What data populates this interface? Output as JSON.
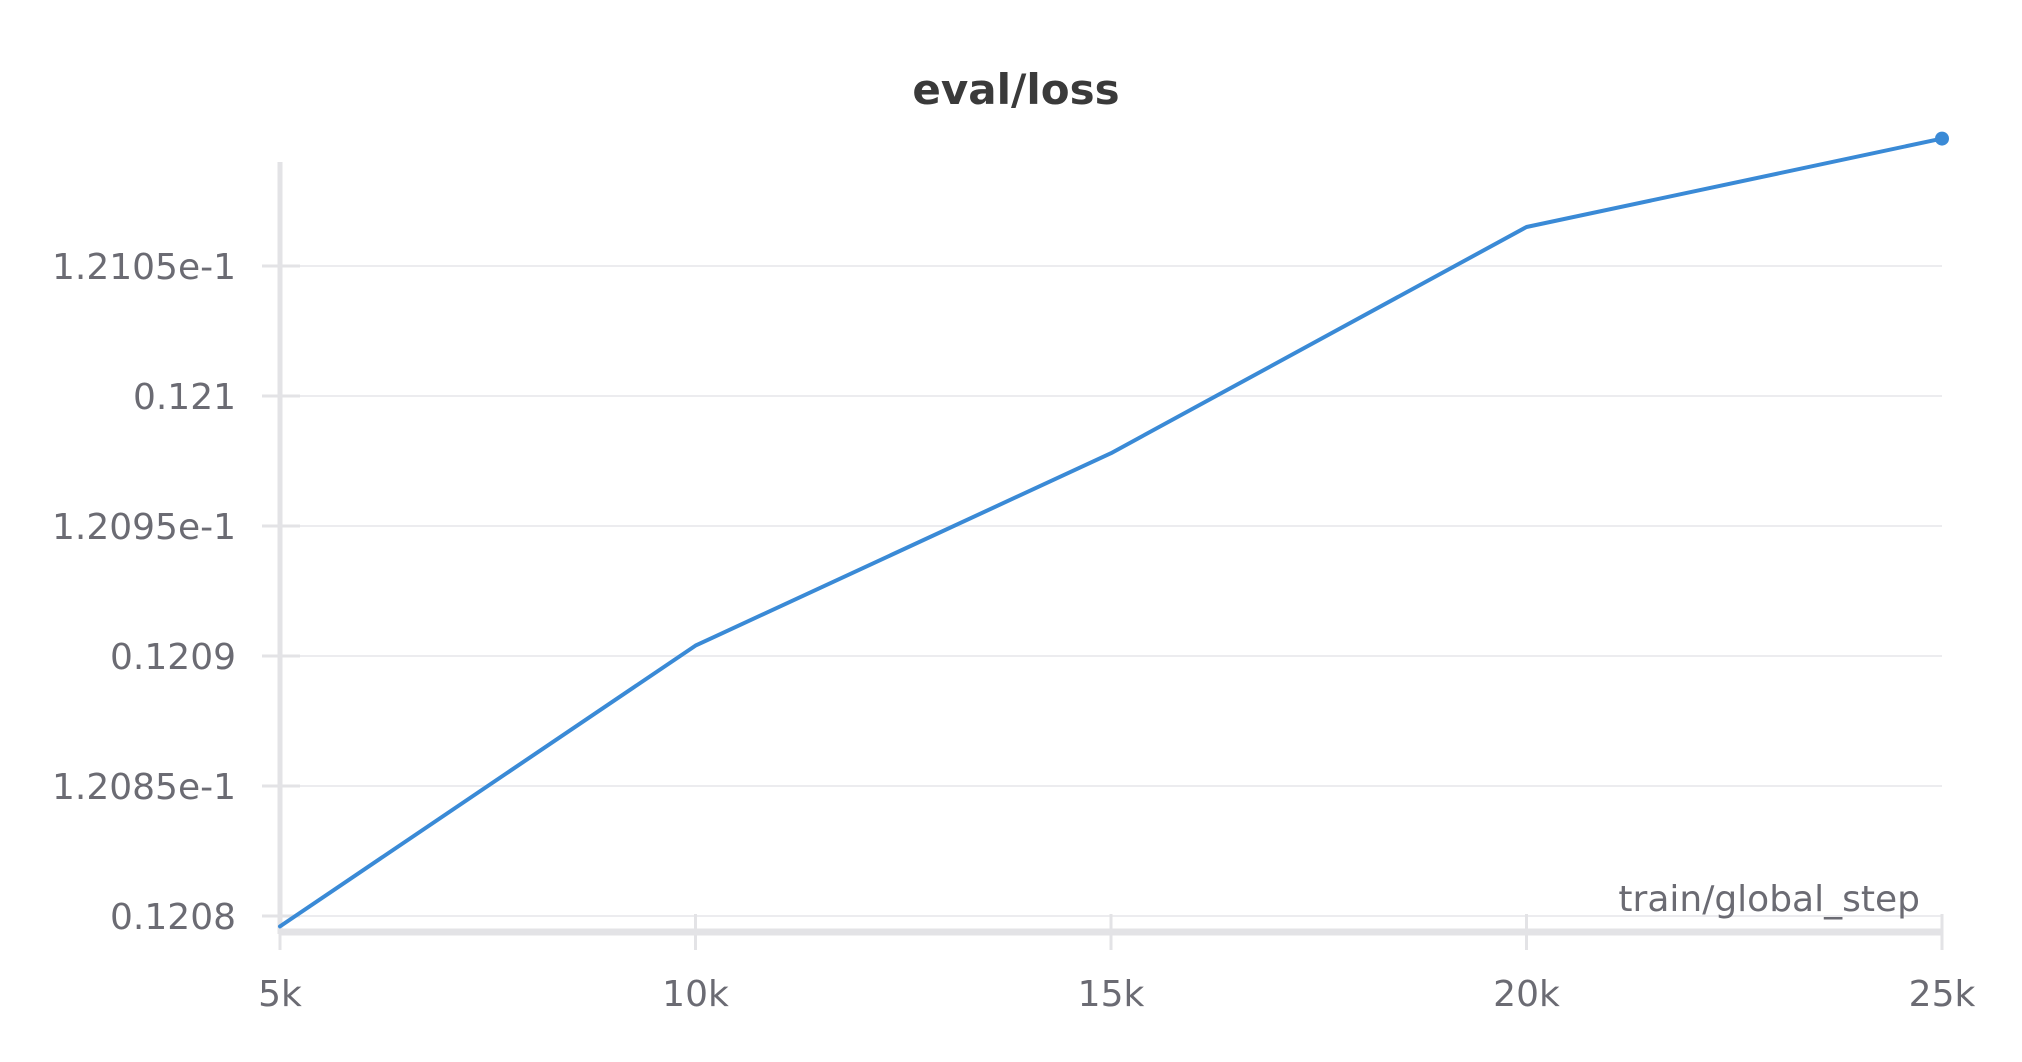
{
  "chart_data": {
    "type": "line",
    "title": "eval/loss",
    "xlabel": "train/global_step",
    "ylabel": "",
    "xlim": [
      5000,
      25000
    ],
    "ylim": [
      0.120795,
      0.12109
    ],
    "grid": true,
    "x_ticks": [
      {
        "value": 5000,
        "label": "5k"
      },
      {
        "value": 10000,
        "label": "10k"
      },
      {
        "value": 15000,
        "label": "15k"
      },
      {
        "value": 20000,
        "label": "20k"
      },
      {
        "value": 25000,
        "label": "25k"
      }
    ],
    "y_ticks": [
      {
        "value": 0.1208,
        "label": "0.1208"
      },
      {
        "value": 0.12085,
        "label": "1.2085e-1"
      },
      {
        "value": 0.1209,
        "label": "0.1209"
      },
      {
        "value": 0.12095,
        "label": "1.2095e-1"
      },
      {
        "value": 0.121,
        "label": "0.121"
      },
      {
        "value": 0.12105,
        "label": "1.2105e-1"
      }
    ],
    "series": [
      {
        "color": "#3a8ad6",
        "x": [
          5000,
          10000,
          15000,
          20000,
          25000
        ],
        "y": [
          0.120796,
          0.120904,
          0.120978,
          0.121065,
          0.121099
        ]
      }
    ]
  }
}
